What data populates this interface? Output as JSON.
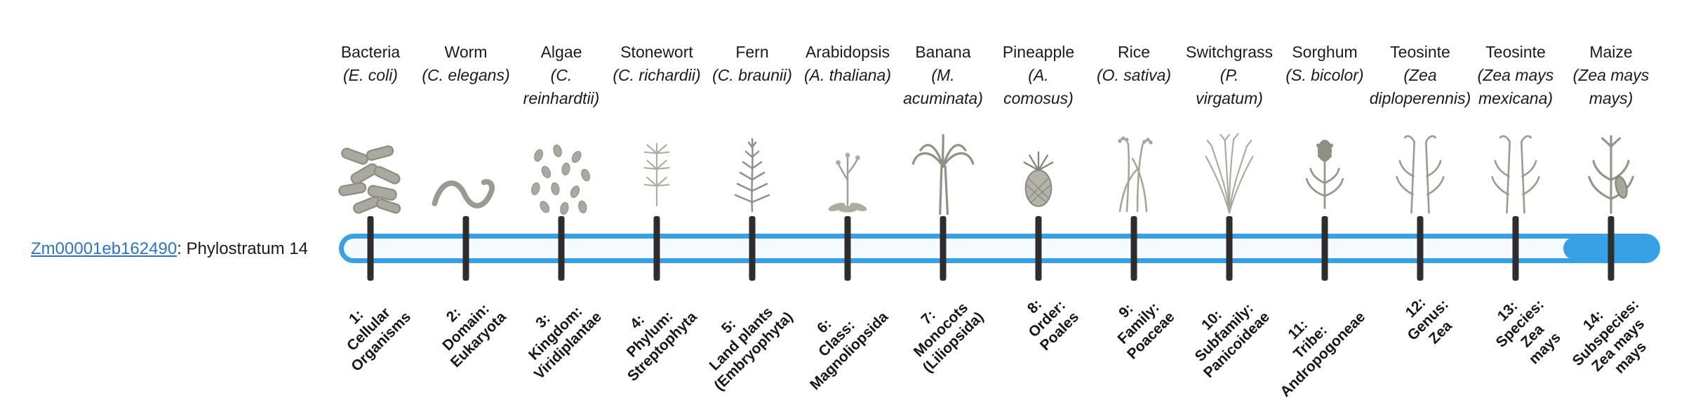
{
  "page": {
    "background": "#ffffff"
  },
  "gene_label": {
    "link_text": "Zm00001eb162490",
    "rest_text": ": Phylostratum 14"
  },
  "timeline": {
    "bar_color": "#38a0e4",
    "bar_inner_color": "#f5fafd",
    "tick_color": "#2e2e2e",
    "highlighted_stratum": 14,
    "num_strata": 14
  },
  "strata": [
    {
      "num": 1,
      "common": "Bacteria",
      "sci_lines": [
        "(E. coli)"
      ],
      "icon": "bacteria-icon",
      "label_lines": [
        "1:",
        "Cellular",
        "Organisms"
      ]
    },
    {
      "num": 2,
      "common": "Worm",
      "sci_lines": [
        "(C. elegans)"
      ],
      "icon": "worm-icon",
      "label_lines": [
        "2:",
        "Domain:",
        "Eukaryota"
      ]
    },
    {
      "num": 3,
      "common": "Algae",
      "sci_lines": [
        "(C.",
        "reinhardtii)"
      ],
      "icon": "algae-icon",
      "label_lines": [
        "3:",
        "Kingdom:",
        "Viridiplantae"
      ]
    },
    {
      "num": 4,
      "common": "Stonewort",
      "sci_lines": [
        "(C. richardii)"
      ],
      "icon": "stonewort-icon",
      "label_lines": [
        "4:",
        "Phylum:",
        "Streptophyta"
      ]
    },
    {
      "num": 5,
      "common": "Fern",
      "sci_lines": [
        "(C. braunii)"
      ],
      "icon": "fern-icon",
      "label_lines": [
        "5:",
        "Land plants",
        "(Embryophyta)"
      ]
    },
    {
      "num": 6,
      "common": "Arabidopsis",
      "sci_lines": [
        "(A. thaliana)"
      ],
      "icon": "arabidopsis-icon",
      "label_lines": [
        "6:",
        "Class:",
        "Magnoliopsida"
      ]
    },
    {
      "num": 7,
      "common": "Banana",
      "sci_lines": [
        "(M.",
        "acuminata)"
      ],
      "icon": "banana-icon",
      "label_lines": [
        "7:",
        "Monocots",
        "(Liliopsida)"
      ]
    },
    {
      "num": 8,
      "common": "Pineapple",
      "sci_lines": [
        "(A.",
        "comosus)"
      ],
      "icon": "pineapple-icon",
      "label_lines": [
        "8:",
        "Order:",
        "Poales"
      ]
    },
    {
      "num": 9,
      "common": "Rice",
      "sci_lines": [
        "(O. sativa)"
      ],
      "icon": "rice-icon",
      "label_lines": [
        "9:",
        "Family:",
        "Poaceae"
      ]
    },
    {
      "num": 10,
      "common": "Switchgrass",
      "sci_lines": [
        "(P.",
        "virgatum)"
      ],
      "icon": "switchgrass-icon",
      "label_lines": [
        "10:",
        "Subfamily:",
        "Panicoideae"
      ]
    },
    {
      "num": 11,
      "common": "Sorghum",
      "sci_lines": [
        "(S. bicolor)"
      ],
      "icon": "sorghum-icon",
      "label_lines": [
        "11:",
        "Tribe:",
        "Andropogoneae"
      ]
    },
    {
      "num": 12,
      "common": "Teosinte",
      "sci_lines": [
        "(Zea",
        "diploperennis)"
      ],
      "icon": "teosinte-icon",
      "label_lines": [
        "12:",
        "Genus:",
        "Zea"
      ]
    },
    {
      "num": 13,
      "common": "Teosinte",
      "sci_lines": [
        "(Zea mays",
        "mexicana)"
      ],
      "icon": "teosinte-icon",
      "label_lines": [
        "13:",
        "Species:",
        "Zea",
        "mays"
      ]
    },
    {
      "num": 14,
      "common": "Maize",
      "sci_lines": [
        "(Zea mays",
        "mays)"
      ],
      "icon": "maize-icon",
      "label_lines": [
        "14:",
        "Subspecies:",
        "Zea mays",
        "mays"
      ]
    }
  ]
}
